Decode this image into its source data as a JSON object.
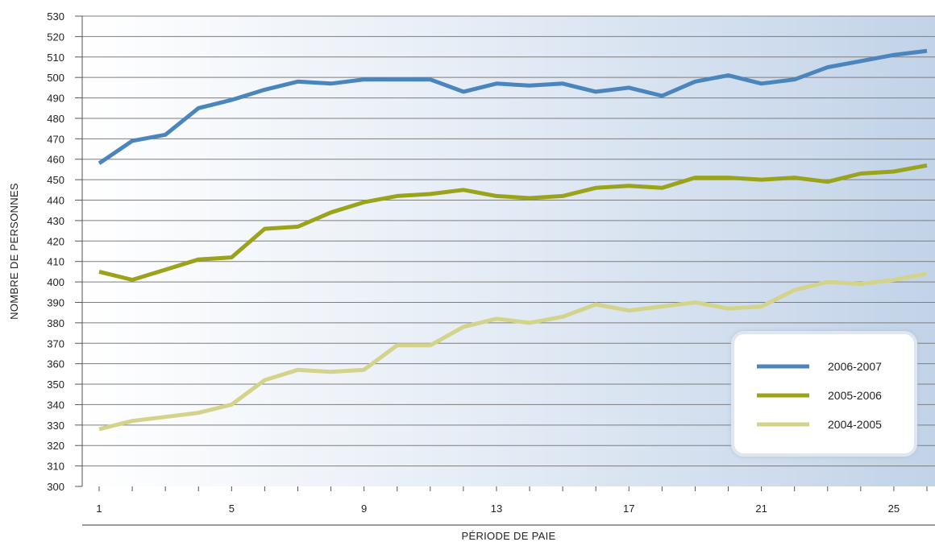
{
  "chart_data": {
    "type": "line",
    "xlabel": "PÉRIODE DE PAIE",
    "ylabel": "NOMBRE DE PERSONNES",
    "ylim": [
      300,
      530
    ],
    "y_ticks": [
      300,
      310,
      320,
      330,
      340,
      350,
      360,
      370,
      380,
      390,
      400,
      410,
      420,
      430,
      440,
      450,
      460,
      470,
      480,
      490,
      500,
      510,
      520,
      530
    ],
    "xlim": [
      1,
      26
    ],
    "x_tick_labels": [
      1,
      5,
      9,
      13,
      17,
      21,
      25
    ],
    "grid": "horizontal",
    "background": "gradient white to light blue",
    "legend_placement": "bottom-right",
    "x": [
      1,
      2,
      3,
      4,
      5,
      6,
      7,
      8,
      9,
      10,
      11,
      12,
      13,
      14,
      15,
      16,
      17,
      18,
      19,
      20,
      21,
      22,
      23,
      24,
      25,
      26
    ],
    "series": [
      {
        "name": "2006-2007",
        "color": "#4a86bd",
        "values": [
          458,
          469,
          472,
          485,
          489,
          494,
          498,
          497,
          499,
          499,
          499,
          493,
          497,
          496,
          497,
          493,
          495,
          491,
          498,
          501,
          497,
          499,
          505,
          508,
          511,
          513
        ]
      },
      {
        "name": "2005-2006",
        "color": "#9aa31a",
        "values": [
          405,
          401,
          406,
          411,
          412,
          426,
          427,
          434,
          439,
          442,
          443,
          445,
          442,
          441,
          442,
          446,
          447,
          446,
          451,
          451,
          450,
          451,
          449,
          453,
          454,
          457
        ]
      },
      {
        "name": "2004-2005",
        "color": "#d3d48a",
        "values": [
          328,
          332,
          334,
          336,
          340,
          352,
          357,
          356,
          357,
          369,
          369,
          378,
          382,
          380,
          383,
          389,
          386,
          388,
          390,
          387,
          388,
          396,
          400,
          399,
          401,
          404
        ]
      }
    ]
  }
}
